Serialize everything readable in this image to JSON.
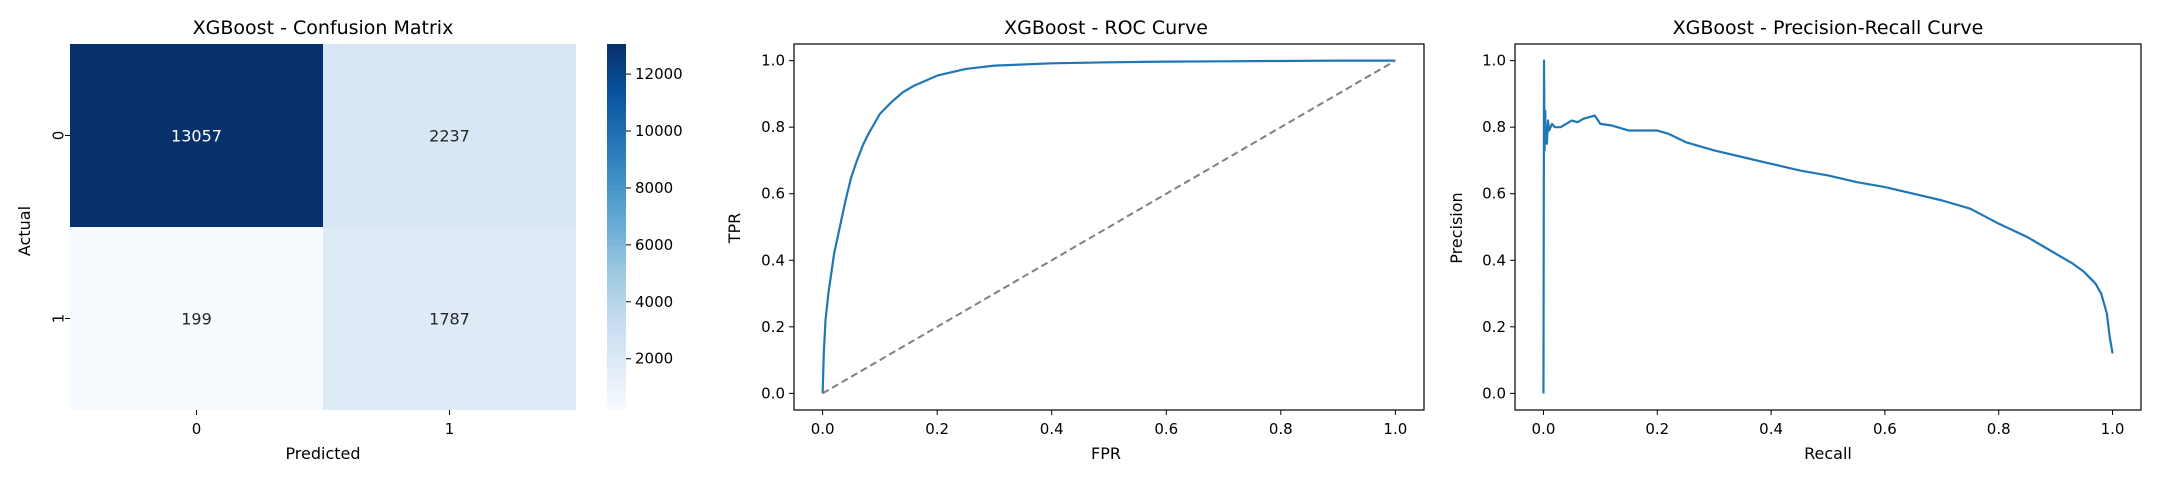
{
  "chart_data": [
    {
      "type": "heatmap",
      "title": "XGBoost - Confusion Matrix",
      "xlabel": "Predicted",
      "ylabel": "Actual",
      "x_categories": [
        "0",
        "1"
      ],
      "y_categories": [
        "0",
        "1"
      ],
      "values": [
        [
          13057,
          2237
        ],
        [
          199,
          1787
        ]
      ],
      "colormap": "Blues",
      "colorbar": {
        "min": 199,
        "max": 13057,
        "ticks": [
          "2000",
          "4000",
          "6000",
          "8000",
          "10000",
          "12000"
        ]
      }
    },
    {
      "type": "line",
      "title": "XGBoost - ROC Curve",
      "xlabel": "FPR",
      "ylabel": "TPR",
      "xlim": [
        -0.05,
        1.05
      ],
      "ylim": [
        -0.05,
        1.05
      ],
      "xticks": [
        "0.0",
        "0.2",
        "0.4",
        "0.6",
        "0.8",
        "1.0"
      ],
      "yticks": [
        "0.0",
        "0.2",
        "0.4",
        "0.6",
        "0.8",
        "1.0"
      ],
      "series": [
        {
          "color": "#1f77b4",
          "style": "solid",
          "x": [
            0.0,
            0.002,
            0.005,
            0.01,
            0.015,
            0.02,
            0.03,
            0.04,
            0.05,
            0.06,
            0.07,
            0.08,
            0.09,
            0.1,
            0.12,
            0.14,
            0.16,
            0.18,
            0.2,
            0.25,
            0.3,
            0.4,
            0.5,
            0.6,
            0.7,
            0.8,
            0.9,
            1.0
          ],
          "y": [
            0.0,
            0.12,
            0.22,
            0.3,
            0.36,
            0.42,
            0.5,
            0.58,
            0.65,
            0.7,
            0.745,
            0.78,
            0.81,
            0.84,
            0.875,
            0.905,
            0.925,
            0.94,
            0.955,
            0.975,
            0.985,
            0.992,
            0.995,
            0.997,
            0.998,
            0.999,
            1.0,
            1.0
          ]
        },
        {
          "color": "#808080",
          "style": "dashed",
          "x": [
            0,
            1
          ],
          "y": [
            0,
            1
          ]
        }
      ]
    },
    {
      "type": "line",
      "title": "XGBoost - Precision-Recall Curve",
      "xlabel": "Recall",
      "ylabel": "Precision",
      "xlim": [
        -0.05,
        1.05
      ],
      "ylim": [
        -0.05,
        1.05
      ],
      "xticks": [
        "0.0",
        "0.2",
        "0.4",
        "0.6",
        "0.8",
        "1.0"
      ],
      "yticks": [
        "0.0",
        "0.2",
        "0.4",
        "0.6",
        "0.8",
        "1.0"
      ],
      "series": [
        {
          "color": "#1f77b4",
          "style": "solid",
          "x": [
            0.0,
            0.001,
            0.002,
            0.003,
            0.004,
            0.005,
            0.006,
            0.008,
            0.01,
            0.015,
            0.02,
            0.03,
            0.04,
            0.05,
            0.06,
            0.07,
            0.08,
            0.09,
            0.1,
            0.12,
            0.15,
            0.18,
            0.2,
            0.22,
            0.25,
            0.3,
            0.35,
            0.4,
            0.45,
            0.5,
            0.55,
            0.6,
            0.65,
            0.7,
            0.75,
            0.8,
            0.85,
            0.9,
            0.93,
            0.95,
            0.97,
            0.98,
            0.99,
            0.995,
            1.0
          ],
          "y": [
            0.0,
            1.0,
            0.73,
            0.85,
            0.77,
            0.8,
            0.75,
            0.82,
            0.79,
            0.81,
            0.8,
            0.8,
            0.81,
            0.82,
            0.815,
            0.825,
            0.83,
            0.835,
            0.81,
            0.805,
            0.79,
            0.79,
            0.79,
            0.78,
            0.755,
            0.73,
            0.71,
            0.69,
            0.67,
            0.655,
            0.635,
            0.62,
            0.6,
            0.58,
            0.555,
            0.51,
            0.47,
            0.42,
            0.39,
            0.365,
            0.33,
            0.3,
            0.24,
            0.17,
            0.12
          ]
        }
      ]
    }
  ]
}
